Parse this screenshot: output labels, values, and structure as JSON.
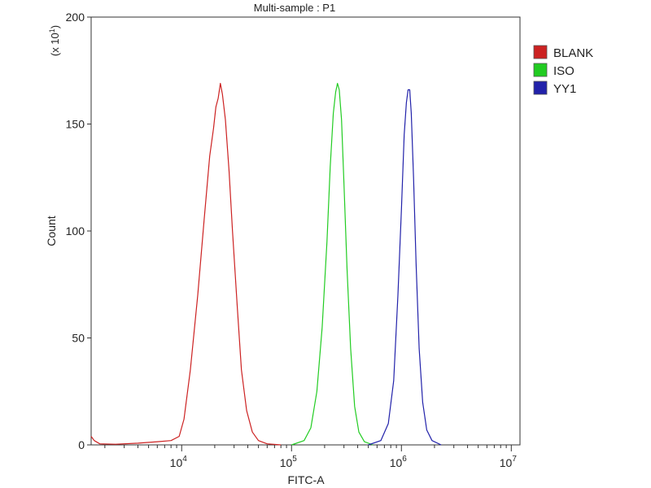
{
  "chart_data": {
    "type": "line",
    "title": "Multi-sample : P1",
    "xlabel": "FITC-A",
    "ylabel": "Count",
    "y_multiplier": "(x 10",
    "y_multiplier_exp": "1",
    "y_multiplier_close": ")",
    "x_scale": "log",
    "xlim": [
      1500,
      12000000
    ],
    "ylim": [
      0,
      200
    ],
    "y_ticks": [
      0,
      50,
      100,
      150,
      200
    ],
    "x_ticks": [
      {
        "value": 10000,
        "base": "10",
        "exp": "4"
      },
      {
        "value": 100000,
        "base": "10",
        "exp": "5"
      },
      {
        "value": 1000000,
        "base": "10",
        "exp": "6"
      },
      {
        "value": 10000000,
        "base": "10",
        "exp": "7"
      }
    ],
    "grid": false,
    "legend_position": "right",
    "series": [
      {
        "name": "BLANK",
        "color": "#cc2222",
        "points": [
          [
            1500,
            4
          ],
          [
            1600,
            2
          ],
          [
            1800,
            0.5
          ],
          [
            2500,
            0.3
          ],
          [
            4000,
            0.8
          ],
          [
            6000,
            1.5
          ],
          [
            8000,
            2
          ],
          [
            9500,
            4
          ],
          [
            10500,
            12
          ],
          [
            12000,
            35
          ],
          [
            14000,
            70
          ],
          [
            16000,
            105
          ],
          [
            18000,
            135
          ],
          [
            19500,
            148
          ],
          [
            20500,
            158
          ],
          [
            21500,
            162
          ],
          [
            22500,
            169
          ],
          [
            23500,
            164
          ],
          [
            25000,
            152
          ],
          [
            27000,
            128
          ],
          [
            29000,
            100
          ],
          [
            32000,
            65
          ],
          [
            35000,
            35
          ],
          [
            39000,
            16
          ],
          [
            44000,
            6
          ],
          [
            50000,
            2
          ],
          [
            60000,
            0.5
          ],
          [
            80000,
            0
          ]
        ]
      },
      {
        "name": "ISO",
        "color": "#22cc22",
        "points": [
          [
            100000,
            0
          ],
          [
            130000,
            2
          ],
          [
            150000,
            8
          ],
          [
            170000,
            25
          ],
          [
            190000,
            55
          ],
          [
            210000,
            95
          ],
          [
            225000,
            130
          ],
          [
            240000,
            155
          ],
          [
            252000,
            165
          ],
          [
            262000,
            169
          ],
          [
            272000,
            166
          ],
          [
            285000,
            152
          ],
          [
            300000,
            122
          ],
          [
            320000,
            82
          ],
          [
            345000,
            45
          ],
          [
            375000,
            18
          ],
          [
            410000,
            6
          ],
          [
            460000,
            1.5
          ],
          [
            550000,
            0
          ]
        ]
      },
      {
        "name": "YY1",
        "color": "#2222aa",
        "points": [
          [
            500000,
            0
          ],
          [
            650000,
            2
          ],
          [
            760000,
            10
          ],
          [
            850000,
            30
          ],
          [
            930000,
            70
          ],
          [
            1000000,
            110
          ],
          [
            1060000,
            145
          ],
          [
            1110000,
            160
          ],
          [
            1150000,
            166
          ],
          [
            1190000,
            166
          ],
          [
            1230000,
            155
          ],
          [
            1290000,
            125
          ],
          [
            1360000,
            85
          ],
          [
            1450000,
            45
          ],
          [
            1560000,
            20
          ],
          [
            1700000,
            7
          ],
          [
            1900000,
            2
          ],
          [
            2300000,
            0
          ]
        ]
      }
    ]
  }
}
